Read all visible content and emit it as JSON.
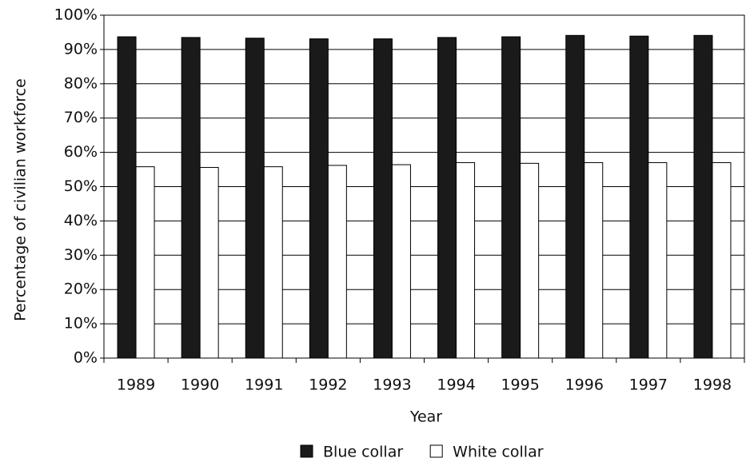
{
  "chart_data": {
    "type": "bar",
    "x_label": "Year",
    "y_label": "Percentage of civilian workforce",
    "categories": [
      "1989",
      "1990",
      "1991",
      "1992",
      "1993",
      "1994",
      "1995",
      "1996",
      "1997",
      "1998"
    ],
    "series": [
      {
        "name": "Blue collar",
        "color": "#1a1a1a",
        "values": [
          93.7,
          93.5,
          93.3,
          93.1,
          93.1,
          93.5,
          93.7,
          94.1,
          93.9,
          94.1
        ]
      },
      {
        "name": "White collar",
        "color": "#ffffff",
        "values": [
          55.8,
          55.6,
          55.8,
          56.2,
          56.4,
          57.0,
          56.8,
          57.0,
          57.0,
          57.0
        ]
      }
    ],
    "ylim": [
      0,
      100
    ],
    "yticks": [
      {
        "value": 0,
        "label": "0%"
      },
      {
        "value": 10,
        "label": "10%"
      },
      {
        "value": 20,
        "label": "20%"
      },
      {
        "value": 30,
        "label": "30%"
      },
      {
        "value": 40,
        "label": "40%"
      },
      {
        "value": 50,
        "label": "50%"
      },
      {
        "value": 60,
        "label": "60%"
      },
      {
        "value": 70,
        "label": "70%"
      },
      {
        "value": 80,
        "label": "80%"
      },
      {
        "value": 90,
        "label": "90%"
      },
      {
        "value": 100,
        "label": "100%"
      }
    ],
    "grid": true,
    "legend": "bottom"
  }
}
